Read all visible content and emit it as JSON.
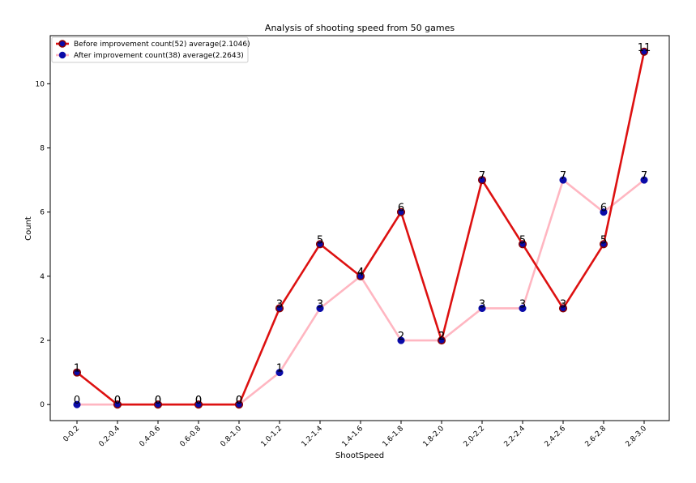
{
  "chart_data": {
    "type": "line",
    "title": "Analysis of shooting speed from 50 games",
    "xlabel": "ShootSpeed",
    "ylabel": "Count",
    "categories": [
      "0-0.2",
      "0.2-0.4",
      "0.4-0.6",
      "0.6-0.8",
      "0.8-1.0",
      "1.0-1.2",
      "1.2-1.4",
      "1.4-1.6",
      "1.6-1.8",
      "1.8-2.0",
      "2.0-2.2",
      "2.2-2.4",
      "2.4-2.6",
      "2.6-2.8",
      "2.8-3.0"
    ],
    "ylim": [
      -0.5,
      11.5
    ],
    "yticks": [
      0,
      2,
      4,
      6,
      8,
      10
    ],
    "grid": false,
    "legend_position": "top-left",
    "series": [
      {
        "name": "Before improvement count(52) average(2.1046)",
        "values": [
          1,
          0,
          0,
          0,
          0,
          3,
          5,
          4,
          6,
          2,
          7,
          5,
          3,
          5,
          11
        ],
        "line_color": "#dd1111",
        "marker_color": "#0a0aa8",
        "marker_edge": "#8b0000"
      },
      {
        "name": "After improvement count(38) average(2.2643)",
        "values": [
          0,
          0,
          0,
          0,
          0,
          1,
          3,
          4,
          2,
          2,
          3,
          3,
          7,
          6,
          7
        ],
        "line_color": "#ffb6c1",
        "marker_color": "#0a0aa8",
        "marker_edge": "#0a0aa8"
      }
    ]
  }
}
